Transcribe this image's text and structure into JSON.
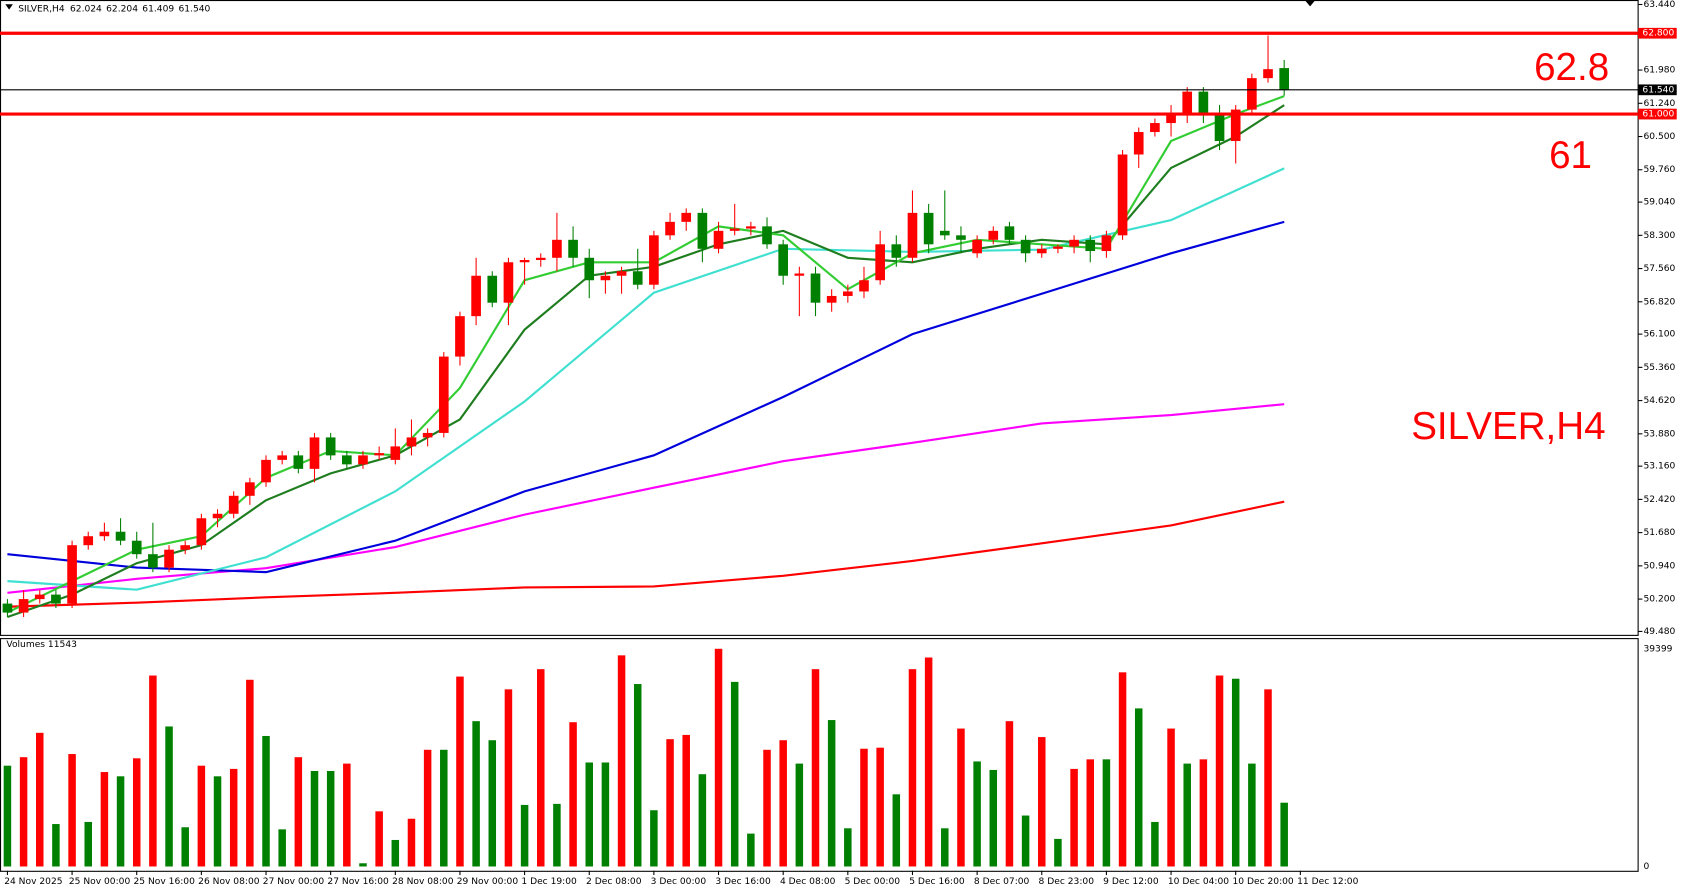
{
  "chart_data": {
    "type": "candlestick",
    "title": "SILVER,H4",
    "title_values": [
      "62.024",
      "62.204",
      "61.409",
      "61.540"
    ],
    "up_color": "#ff0000",
    "down_color": "#008000",
    "xlim": [
      -0.46,
      100.9
    ],
    "ylim": [
      49.38,
      63.54
    ],
    "yticks": [
      {
        "value": 63.44,
        "label": "63.440"
      },
      {
        "value": 61.98,
        "label": "61.980"
      },
      {
        "value": 61.24,
        "label": "61.240"
      },
      {
        "value": 60.5,
        "label": "60.500"
      },
      {
        "value": 59.76,
        "label": "59.760"
      },
      {
        "value": 59.04,
        "label": "59.040"
      },
      {
        "value": 58.3,
        "label": "58.300"
      },
      {
        "value": 57.56,
        "label": "57.560"
      },
      {
        "value": 56.82,
        "label": "56.820"
      },
      {
        "value": 56.1,
        "label": "56.100"
      },
      {
        "value": 55.36,
        "label": "55.360"
      },
      {
        "value": 54.62,
        "label": "54.620"
      },
      {
        "value": 53.88,
        "label": "53.880"
      },
      {
        "value": 53.16,
        "label": "53.160"
      },
      {
        "value": 52.42,
        "label": "52.420"
      },
      {
        "value": 51.68,
        "label": "51.680"
      },
      {
        "value": 50.94,
        "label": "50.940"
      },
      {
        "value": 50.2,
        "label": "50.200"
      },
      {
        "value": 49.48,
        "label": "49.480"
      }
    ],
    "xticks": [
      {
        "value": 0,
        "label": "24 Nov 2025"
      },
      {
        "value": 4,
        "label": "25 Nov 00:00"
      },
      {
        "value": 8,
        "label": "25 Nov 16:00"
      },
      {
        "value": 12,
        "label": "26 Nov 08:00"
      },
      {
        "value": 16,
        "label": "27 Nov 00:00"
      },
      {
        "value": 20,
        "label": "27 Nov 16:00"
      },
      {
        "value": 24,
        "label": "28 Nov 08:00"
      },
      {
        "value": 28,
        "label": "29 Nov 00:00"
      },
      {
        "value": 32,
        "label": "1 Dec 19:00"
      },
      {
        "value": 36,
        "label": "2 Dec 08:00"
      },
      {
        "value": 40,
        "label": "3 Dec 00:00"
      },
      {
        "value": 44,
        "label": "3 Dec 16:00"
      },
      {
        "value": 48,
        "label": "4 Dec 08:00"
      },
      {
        "value": 52,
        "label": "5 Dec 00:00"
      },
      {
        "value": 56,
        "label": "5 Dec 16:00"
      },
      {
        "value": 60,
        "label": "8 Dec 07:00"
      },
      {
        "value": 64,
        "label": "8 Dec 23:00"
      },
      {
        "value": 68,
        "label": "9 Dec 12:00"
      },
      {
        "value": 72,
        "label": "10 Dec 04:00"
      },
      {
        "value": 76,
        "label": "10 Dec 20:00"
      },
      {
        "value": 80,
        "label": "11 Dec 12:00"
      }
    ],
    "x": [
      0,
      1,
      2,
      3,
      4,
      5,
      6,
      7,
      8,
      9,
      10,
      11,
      12,
      13,
      14,
      15,
      16,
      17,
      18,
      19,
      20,
      21,
      22,
      23,
      24,
      25,
      26,
      27,
      28,
      29,
      30,
      31,
      32,
      33,
      34,
      35,
      36,
      37,
      38,
      39,
      40,
      41,
      42,
      43,
      44,
      45,
      46,
      47,
      48,
      49,
      50,
      51,
      52,
      53,
      54,
      55,
      56,
      57,
      58,
      59,
      60,
      61,
      62,
      63,
      64,
      65,
      66,
      67,
      68,
      69,
      70,
      71,
      72,
      73,
      74,
      75,
      76,
      77,
      78,
      79
    ],
    "open": [
      50.1,
      49.9,
      50.2,
      50.3,
      50.1,
      51.4,
      51.6,
      51.7,
      51.5,
      51.2,
      50.9,
      51.3,
      51.4,
      52.0,
      52.1,
      52.5,
      52.8,
      53.3,
      53.4,
      53.1,
      53.8,
      53.4,
      53.2,
      53.4,
      53.3,
      53.6,
      53.8,
      53.9,
      55.6,
      56.5,
      57.4,
      56.8,
      57.7,
      57.75,
      57.8,
      58.2,
      57.8,
      57.3,
      57.4,
      57.5,
      57.2,
      58.3,
      58.6,
      58.8,
      58.0,
      58.4,
      58.45,
      58.5,
      58.1,
      57.4,
      57.45,
      56.8,
      56.95,
      57.05,
      57.3,
      58.1,
      57.8,
      58.8,
      58.4,
      58.3,
      57.9,
      58.2,
      58.5,
      58.2,
      57.9,
      58.0,
      58.05,
      58.2,
      57.95,
      58.3,
      60.1,
      60.6,
      60.8,
      61.0,
      61.5,
      61.0,
      60.4,
      61.1,
      61.8,
      62.024
    ],
    "high": [
      50.2,
      50.4,
      50.4,
      50.4,
      51.5,
      51.7,
      51.9,
      52.0,
      51.7,
      51.9,
      51.4,
      51.5,
      52.1,
      52.2,
      52.6,
      52.9,
      53.4,
      53.5,
      53.5,
      53.9,
      53.9,
      53.5,
      53.5,
      53.6,
      54.0,
      54.2,
      54.0,
      55.7,
      56.6,
      57.8,
      57.5,
      57.8,
      57.8,
      57.9,
      58.8,
      58.5,
      58.0,
      57.5,
      57.6,
      58.0,
      58.4,
      58.8,
      58.9,
      58.9,
      58.6,
      59.0,
      58.6,
      58.7,
      58.2,
      57.6,
      57.6,
      57.1,
      57.2,
      57.6,
      58.4,
      58.3,
      59.3,
      59.0,
      59.3,
      58.5,
      58.3,
      58.5,
      58.6,
      58.3,
      58.1,
      58.1,
      58.3,
      58.3,
      58.4,
      60.2,
      60.7,
      60.9,
      61.2,
      61.6,
      61.6,
      61.2,
      61.2,
      61.9,
      62.75,
      62.204
    ],
    "low": [
      49.8,
      49.8,
      50.1,
      50.0,
      50.0,
      51.3,
      51.5,
      51.4,
      51.1,
      50.8,
      50.8,
      51.2,
      51.3,
      51.8,
      52.0,
      52.3,
      52.7,
      53.2,
      53.0,
      52.8,
      53.3,
      53.1,
      53.1,
      53.3,
      53.2,
      53.4,
      53.6,
      53.8,
      55.4,
      56.3,
      56.7,
      56.3,
      57.2,
      57.6,
      57.5,
      57.6,
      56.9,
      57.0,
      57.0,
      57.1,
      57.1,
      58.2,
      58.4,
      57.7,
      57.9,
      58.3,
      58.3,
      58.0,
      57.2,
      56.5,
      56.5,
      56.6,
      56.8,
      56.9,
      57.2,
      57.6,
      57.7,
      57.9,
      58.2,
      57.9,
      57.8,
      58.1,
      58.1,
      57.7,
      57.8,
      57.9,
      57.9,
      57.7,
      57.8,
      58.2,
      59.8,
      60.5,
      60.5,
      60.8,
      60.8,
      60.2,
      59.9,
      61.0,
      61.7,
      61.409
    ],
    "close": [
      49.9,
      50.2,
      50.3,
      50.1,
      51.4,
      51.6,
      51.7,
      51.5,
      51.2,
      50.9,
      51.3,
      51.4,
      52.0,
      52.1,
      52.5,
      52.8,
      53.3,
      53.4,
      53.1,
      53.8,
      53.4,
      53.2,
      53.4,
      53.45,
      53.6,
      53.8,
      53.9,
      55.6,
      56.5,
      57.4,
      56.8,
      57.7,
      57.75,
      57.8,
      58.2,
      57.8,
      57.3,
      57.4,
      57.5,
      57.2,
      58.3,
      58.6,
      58.8,
      58.0,
      58.4,
      58.45,
      58.5,
      58.1,
      57.4,
      57.45,
      56.8,
      56.95,
      57.05,
      57.3,
      58.1,
      57.8,
      58.8,
      58.1,
      58.3,
      58.2,
      58.2,
      58.4,
      58.2,
      57.9,
      58.0,
      58.05,
      58.2,
      57.95,
      58.3,
      60.1,
      60.6,
      60.8,
      61.0,
      61.5,
      61.0,
      60.4,
      61.1,
      61.8,
      62.0,
      61.54
    ],
    "moving_averages": [
      {
        "color": "#ff0000",
        "x": [
          0,
          8,
          16,
          24,
          32,
          40,
          48,
          56,
          64,
          72,
          79
        ],
        "values": [
          50.03,
          50.12,
          50.24,
          50.34,
          50.46,
          50.48,
          50.72,
          51.05,
          51.44,
          51.84,
          52.37
        ]
      },
      {
        "color": "#ff00ff",
        "x": [
          0,
          8,
          16,
          24,
          32,
          40,
          48,
          56,
          64,
          72,
          79
        ],
        "values": [
          50.34,
          50.65,
          50.89,
          51.36,
          52.08,
          52.68,
          53.27,
          53.68,
          54.11,
          54.3,
          54.54
        ]
      },
      {
        "color": "#0000dd",
        "x": [
          0,
          8,
          16,
          24,
          32,
          40,
          48,
          56,
          64,
          72,
          79
        ],
        "values": [
          51.2,
          50.9,
          50.8,
          51.5,
          52.6,
          53.4,
          54.7,
          56.1,
          57.0,
          57.9,
          58.6
        ]
      },
      {
        "color": "#40e0d0",
        "x": [
          0,
          8,
          16,
          24,
          32,
          40,
          48,
          56,
          64,
          72,
          79
        ],
        "values": [
          50.6,
          50.41,
          51.13,
          52.6,
          54.6,
          57.02,
          58.0,
          57.93,
          57.98,
          58.64,
          59.79
        ]
      },
      {
        "color": "#1e7d1e",
        "x": [
          0,
          4,
          8,
          12,
          16,
          20,
          24,
          28,
          32,
          36,
          40,
          44,
          48,
          52,
          56,
          60,
          64,
          68,
          72,
          76,
          79
        ],
        "values": [
          49.8,
          50.3,
          51.0,
          51.4,
          52.4,
          53.0,
          53.4,
          54.2,
          56.2,
          57.4,
          57.6,
          58.1,
          58.4,
          57.8,
          57.7,
          58.0,
          58.2,
          58.1,
          59.8,
          60.5,
          61.2
        ]
      },
      {
        "color": "#32cd32",
        "x": [
          0,
          4,
          8,
          12,
          16,
          20,
          24,
          28,
          32,
          36,
          40,
          44,
          48,
          52,
          56,
          60,
          64,
          68,
          72,
          76,
          79
        ],
        "values": [
          49.9,
          50.6,
          51.3,
          51.6,
          52.9,
          53.5,
          53.4,
          54.9,
          57.3,
          57.7,
          57.7,
          58.5,
          58.3,
          57.1,
          57.9,
          58.2,
          58.1,
          58.0,
          60.4,
          61.0,
          61.4
        ]
      }
    ],
    "hlines": [
      {
        "value": 62.8,
        "label": "62.800",
        "color": "#ff0000"
      },
      {
        "value": 61.0,
        "label": "61.000",
        "color": "#ff0000"
      },
      {
        "value": 61.54,
        "label": "61.540",
        "color": "#000000"
      }
    ],
    "annotations": [
      "62.8",
      "61",
      "SILVER,H4"
    ],
    "volume": {
      "label": "Volumes 11543",
      "ylim": [
        0,
        39399
      ],
      "yticks": [
        39399,
        0
      ],
      "values": [
        18240,
        19780,
        24190,
        7680,
        20350,
        8060,
        17090,
        16320,
        19580,
        34560,
        25340,
        7100,
        18240,
        16320,
        17660,
        33790,
        23620,
        6720,
        19780,
        17280,
        17280,
        18620,
        580,
        9980,
        4800,
        8640,
        21120,
        21120,
        34370,
        26300,
        22850,
        32060,
        11140,
        35710,
        11330,
        26110,
        18820,
        18820,
        38210,
        33020,
        10180,
        23040,
        23810,
        16700,
        39399,
        33410,
        5950,
        21120,
        22850,
        18620,
        35710,
        26500,
        6910,
        21310,
        21500,
        13060,
        35710,
        37820,
        6910,
        24960,
        19010,
        17470,
        26300,
        9220,
        23420,
        4990,
        17660,
        19390,
        19390,
        35140,
        28610,
        8060,
        24960,
        18620,
        19390,
        34560,
        33980,
        18620,
        32060,
        11543
      ]
    }
  }
}
